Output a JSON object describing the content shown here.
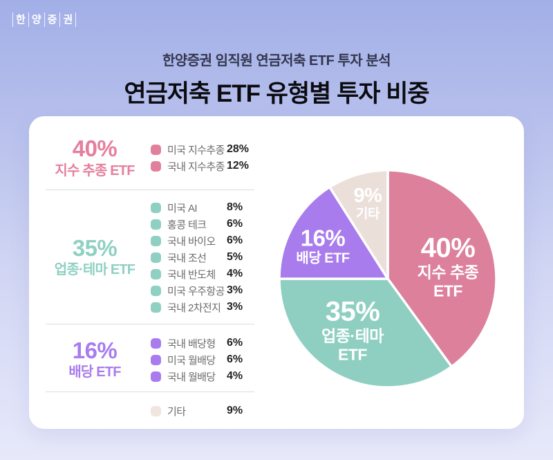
{
  "brand": {
    "name": "한양증권",
    "logo_chars": [
      "한",
      "양",
      "증",
      "권"
    ]
  },
  "header": {
    "subtitle": "한양증권 임직원 연금저축 ETF 투자 분석",
    "title": "연금저축 ETF 유형별 투자 비중"
  },
  "colors": {
    "index_pink": "#E0809C",
    "sector_teal": "#8FD0C3",
    "dividend_purple": "#A87CEE",
    "etc_beige": "#EDE0DA",
    "background_top": "#A2AFE7",
    "background_bottom": "#E7E9FA",
    "card_white": "#FFFFFF"
  },
  "chart_data": {
    "type": "pie",
    "title": "연금저축 ETF 유형별 투자 비중",
    "start_angle_deg": 0,
    "direction": "clockwise",
    "legend_position": "left",
    "slices": [
      {
        "label": "지수 추종 ETF",
        "value": 40,
        "color": "#DC809C",
        "callout": {
          "percent": "40%",
          "lines": [
            "지수 추종",
            "ETF"
          ]
        }
      },
      {
        "label": "업종·테마 ETF",
        "value": 35,
        "color": "#8FCFC1",
        "callout": {
          "percent": "35%",
          "lines": [
            "업종·테마",
            "ETF"
          ]
        }
      },
      {
        "label": "배당 ETF",
        "value": 16,
        "color": "#A87CEC",
        "callout": {
          "percent": "16%",
          "lines": [
            "배당 ETF"
          ]
        }
      },
      {
        "label": "기타",
        "value": 9,
        "color": "#EBDFDA",
        "callout": {
          "percent": "9%",
          "lines": [
            "기타"
          ]
        }
      }
    ]
  },
  "legend": {
    "groups": [
      {
        "percent": "40%",
        "name": "지수 추종 ETF",
        "items": [
          {
            "label": "미국 지수추종",
            "value": "28%"
          },
          {
            "label": "국내 지수추종",
            "value": "12%"
          }
        ]
      },
      {
        "percent": "35%",
        "name": "업종·테마 ETF",
        "items": [
          {
            "label": "미국 AI",
            "value": "8%"
          },
          {
            "label": "홍콩 테크",
            "value": "6%"
          },
          {
            "label": "국내 바이오",
            "value": "6%"
          },
          {
            "label": "국내 조선",
            "value": "5%"
          },
          {
            "label": "국내 반도체",
            "value": "4%"
          },
          {
            "label": "미국 우주항공",
            "value": "3%"
          },
          {
            "label": "국내 2차전지",
            "value": "3%"
          }
        ]
      },
      {
        "percent": "16%",
        "name": "배당 ETF",
        "items": [
          {
            "label": "국내 배당형",
            "value": "6%"
          },
          {
            "label": "미국 월배당",
            "value": "6%"
          },
          {
            "label": "국내 월배당",
            "value": "4%"
          }
        ]
      },
      {
        "percent": "",
        "name": "",
        "items": [
          {
            "label": "기타",
            "value": "9%"
          }
        ]
      }
    ]
  }
}
